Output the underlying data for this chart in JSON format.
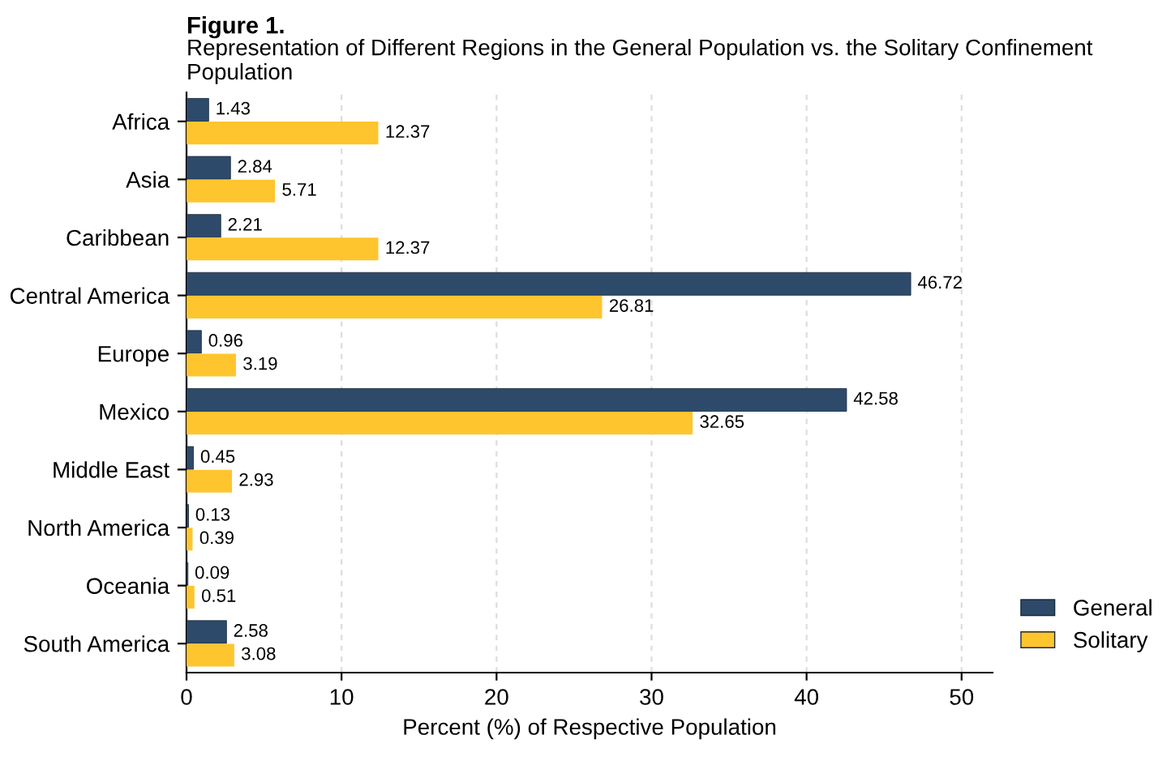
{
  "chart_data": {
    "type": "bar",
    "orientation": "horizontal",
    "title": "Figure 1.",
    "subtitle": "Representation of Different Regions in the General Population vs. the Solitary Confinement Population",
    "xlabel": "Percent (%) of Respective Population",
    "categories": [
      "Africa",
      "Asia",
      "Caribbean",
      "Central America",
      "Europe",
      "Mexico",
      "Middle East",
      "North America",
      "Oceania",
      "South America"
    ],
    "series": [
      {
        "name": "General",
        "color": "#2e4a6b",
        "values": [
          1.43,
          2.84,
          2.21,
          46.72,
          0.96,
          42.58,
          0.45,
          0.13,
          0.09,
          2.58
        ]
      },
      {
        "name": "Solitary",
        "color": "#fec52e",
        "values": [
          12.37,
          5.71,
          12.37,
          26.81,
          3.19,
          32.65,
          2.93,
          0.39,
          0.51,
          3.08
        ]
      }
    ],
    "xlim": [
      0,
      52
    ],
    "xticks": [
      0,
      10,
      20,
      30,
      40,
      50
    ],
    "grid": "x",
    "legend": "bottom right",
    "data_labels": true
  }
}
